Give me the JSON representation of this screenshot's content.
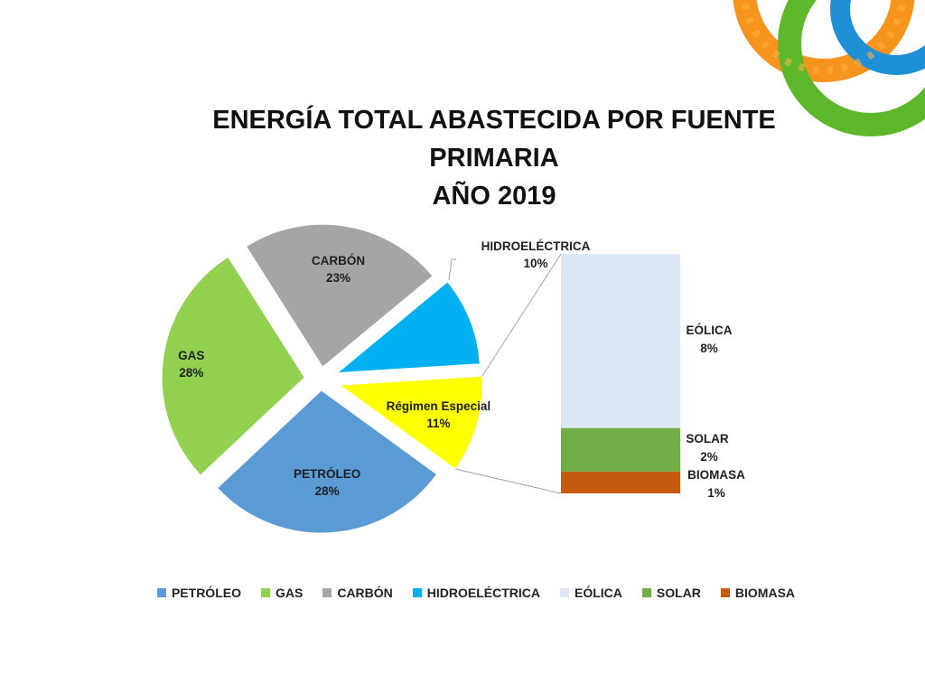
{
  "title": {
    "line1": "ENERGÍA TOTAL ABASTECIDA POR FUENTE",
    "line2": "PRIMARIA",
    "line3": "AÑO 2019"
  },
  "chart_data": {
    "type": "pie",
    "subtype": "pie-of-bar",
    "title": "ENERGÍA TOTAL ABASTECIDA POR FUENTE PRIMARIA AÑO 2019",
    "unit": "%",
    "pie": [
      {
        "name": "PETRÓLEO",
        "label": "PETRÓLEO",
        "value": 28,
        "value_label": "28%",
        "color": "#5b9bd5"
      },
      {
        "name": "GAS",
        "label": "GAS",
        "value": 28,
        "value_label": "28%",
        "color": "#92d050"
      },
      {
        "name": "CARBÓN",
        "label": "CARBÓN",
        "value": 23,
        "value_label": "23%",
        "color": "#a5a5a5"
      },
      {
        "name": "HIDROELÉCTRICA",
        "label": "",
        "value": 10,
        "value_label": "",
        "color": "#00b0f0"
      },
      {
        "name": "Régimen Especial",
        "label": "Régimen Especial",
        "value": 11,
        "value_label": "11%",
        "color": "#ffff00"
      }
    ],
    "bar": [
      {
        "name": "EÓLICA",
        "label": "EÓLICA",
        "value": 8,
        "value_label": "8%",
        "color": "#dde8f5"
      },
      {
        "name": "SOLAR",
        "label": "SOLAR",
        "value": 2,
        "value_label": "2%",
        "color": "#70ad47"
      },
      {
        "name": "BIOMASA",
        "label": "BIOMASA",
        "value": 1,
        "value_label": "1%",
        "color": "#c55a11"
      }
    ],
    "hydro_callout": {
      "label": "HIDROELÉCTRICA",
      "value_label": "10%"
    },
    "legend_position": "bottom",
    "legend": [
      {
        "name": "PETRÓLEO",
        "color": "#5b9bd5"
      },
      {
        "name": "GAS",
        "color": "#92d050"
      },
      {
        "name": "CARBÓN",
        "color": "#a5a5a5"
      },
      {
        "name": "HIDROELÉCTRICA",
        "color": "#00b0f0"
      },
      {
        "name": "EÓLICA",
        "color": "#dde8f5"
      },
      {
        "name": "SOLAR",
        "color": "#70ad47"
      },
      {
        "name": "BIOMASA",
        "color": "#c55a11"
      }
    ]
  }
}
